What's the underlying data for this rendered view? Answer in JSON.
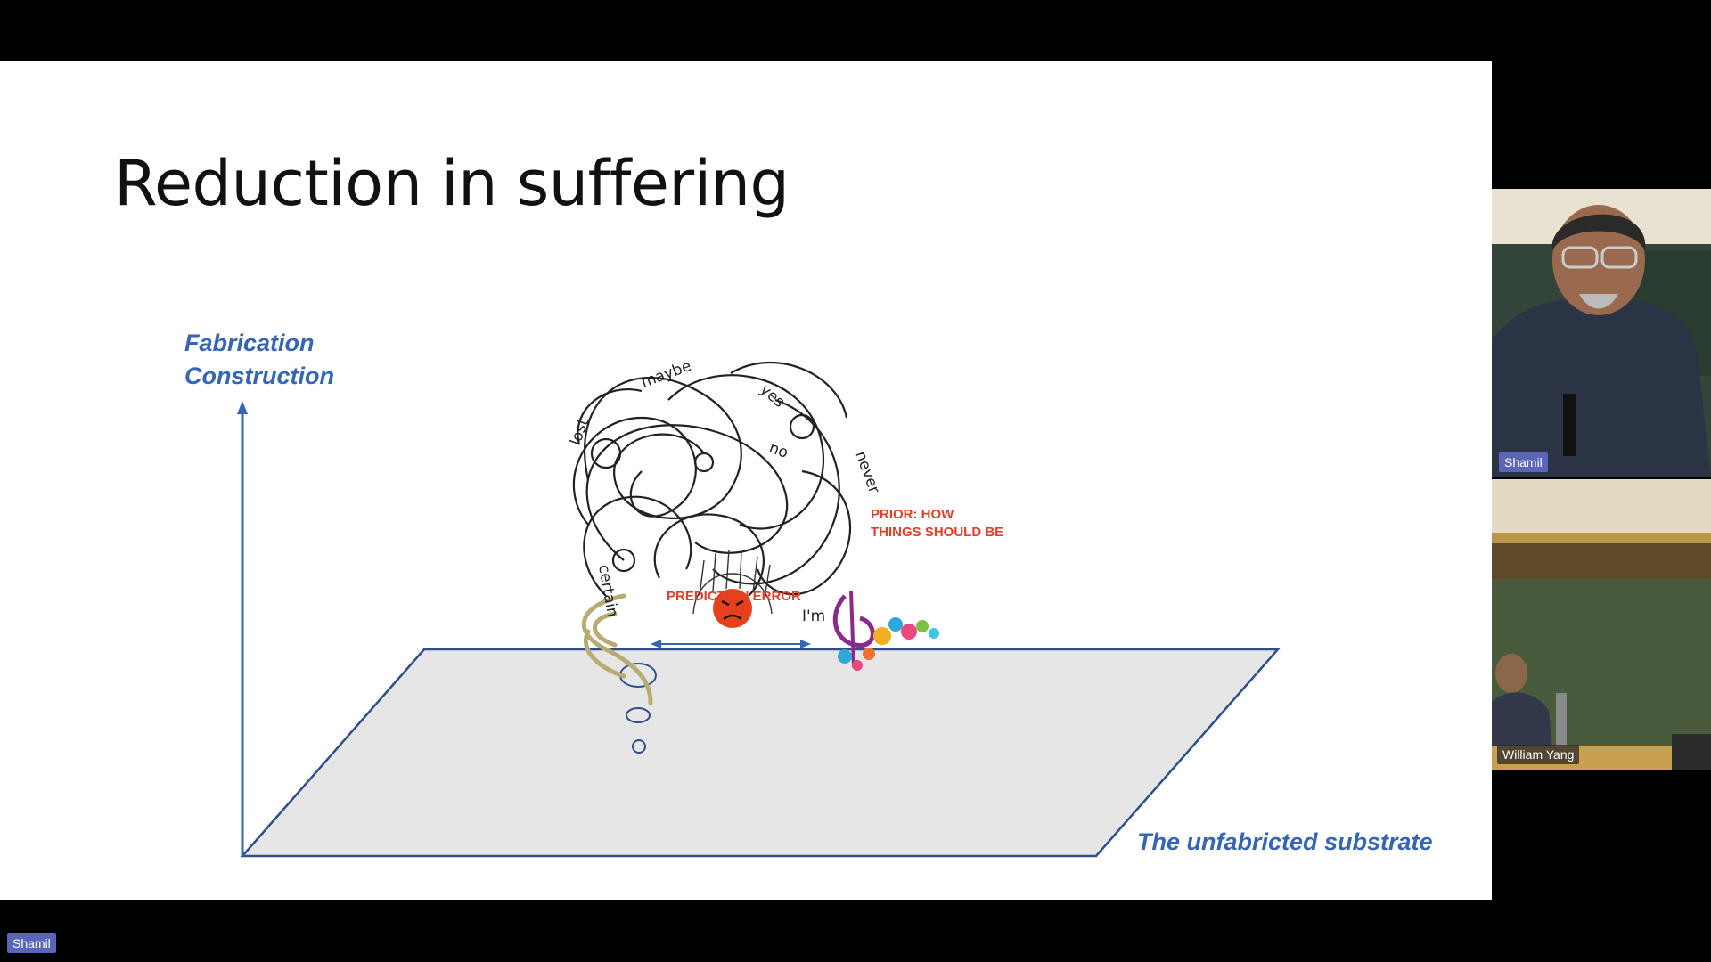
{
  "slide": {
    "title": "Reduction in suffering",
    "y_axis_label_line1": "Fabrication",
    "y_axis_label_line2": "Construction",
    "x_axis_label": "The unfabricted substrate",
    "prior_label_line1": "PRIOR: HOW",
    "prior_label_line2": "THINGS SHOULD BE",
    "error_label": "PREDICTION ERROR",
    "doodle_words": [
      "lost",
      "maybe",
      "yes",
      "no",
      "never",
      "certain",
      "I'm"
    ],
    "colors": {
      "accent_blue": "#3566b6",
      "plane_fill": "#e6e6e6",
      "red_label": "#e0402a"
    }
  },
  "participants": [
    {
      "name": "Shamil"
    },
    {
      "name": "William Yang"
    }
  ],
  "presenter_tag": "Shamil"
}
